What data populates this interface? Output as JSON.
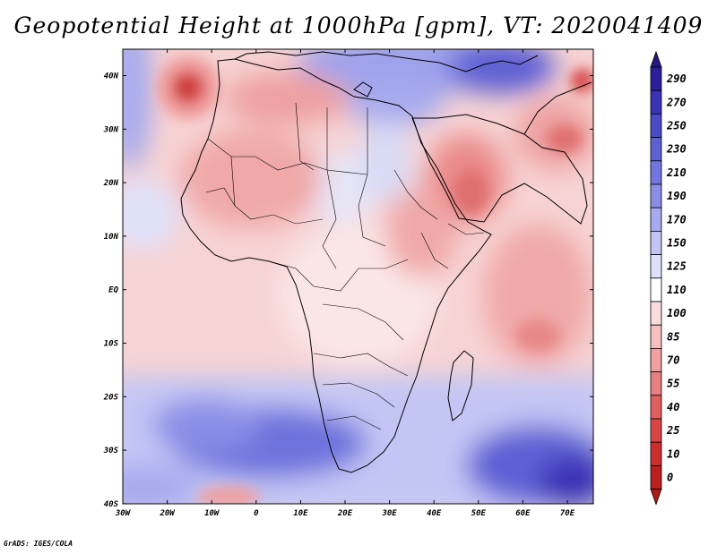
{
  "title": "Geopotential Height at 1000hPa [gpm], VT: 2020041409",
  "credit": "GrADS: IGES/COLA",
  "map": {
    "variable": "Geopotential Height",
    "level": "1000hPa",
    "units": "gpm",
    "valid_time": "2020041409",
    "lon_ticks": [
      "30W",
      "20W",
      "10W",
      "0",
      "10E",
      "20E",
      "30E",
      "40E",
      "50E",
      "60E",
      "70E"
    ],
    "lat_ticks": [
      "40N",
      "30N",
      "20N",
      "10N",
      "EQ",
      "10S",
      "20S",
      "30S",
      "40S"
    ]
  },
  "colorbar": {
    "labels": [
      "290",
      "270",
      "250",
      "230",
      "210",
      "190",
      "170",
      "150",
      "125",
      "110",
      "100",
      "85",
      "70",
      "55",
      "40",
      "25",
      "10",
      "0"
    ],
    "colors": [
      "#2b1f9b",
      "#3a33b5",
      "#4a49c7",
      "#5e61d4",
      "#7276de",
      "#8a8ee6",
      "#a6aaee",
      "#c3c6f5",
      "#dfe1fb",
      "#ffffff",
      "#fbdcdc",
      "#f6c0c0",
      "#f0a0a0",
      "#e88080",
      "#e06060",
      "#d84545",
      "#cc2e2e",
      "#bb1f1f"
    ],
    "top_color": "#221880",
    "bottom_color": "#b01818"
  }
}
